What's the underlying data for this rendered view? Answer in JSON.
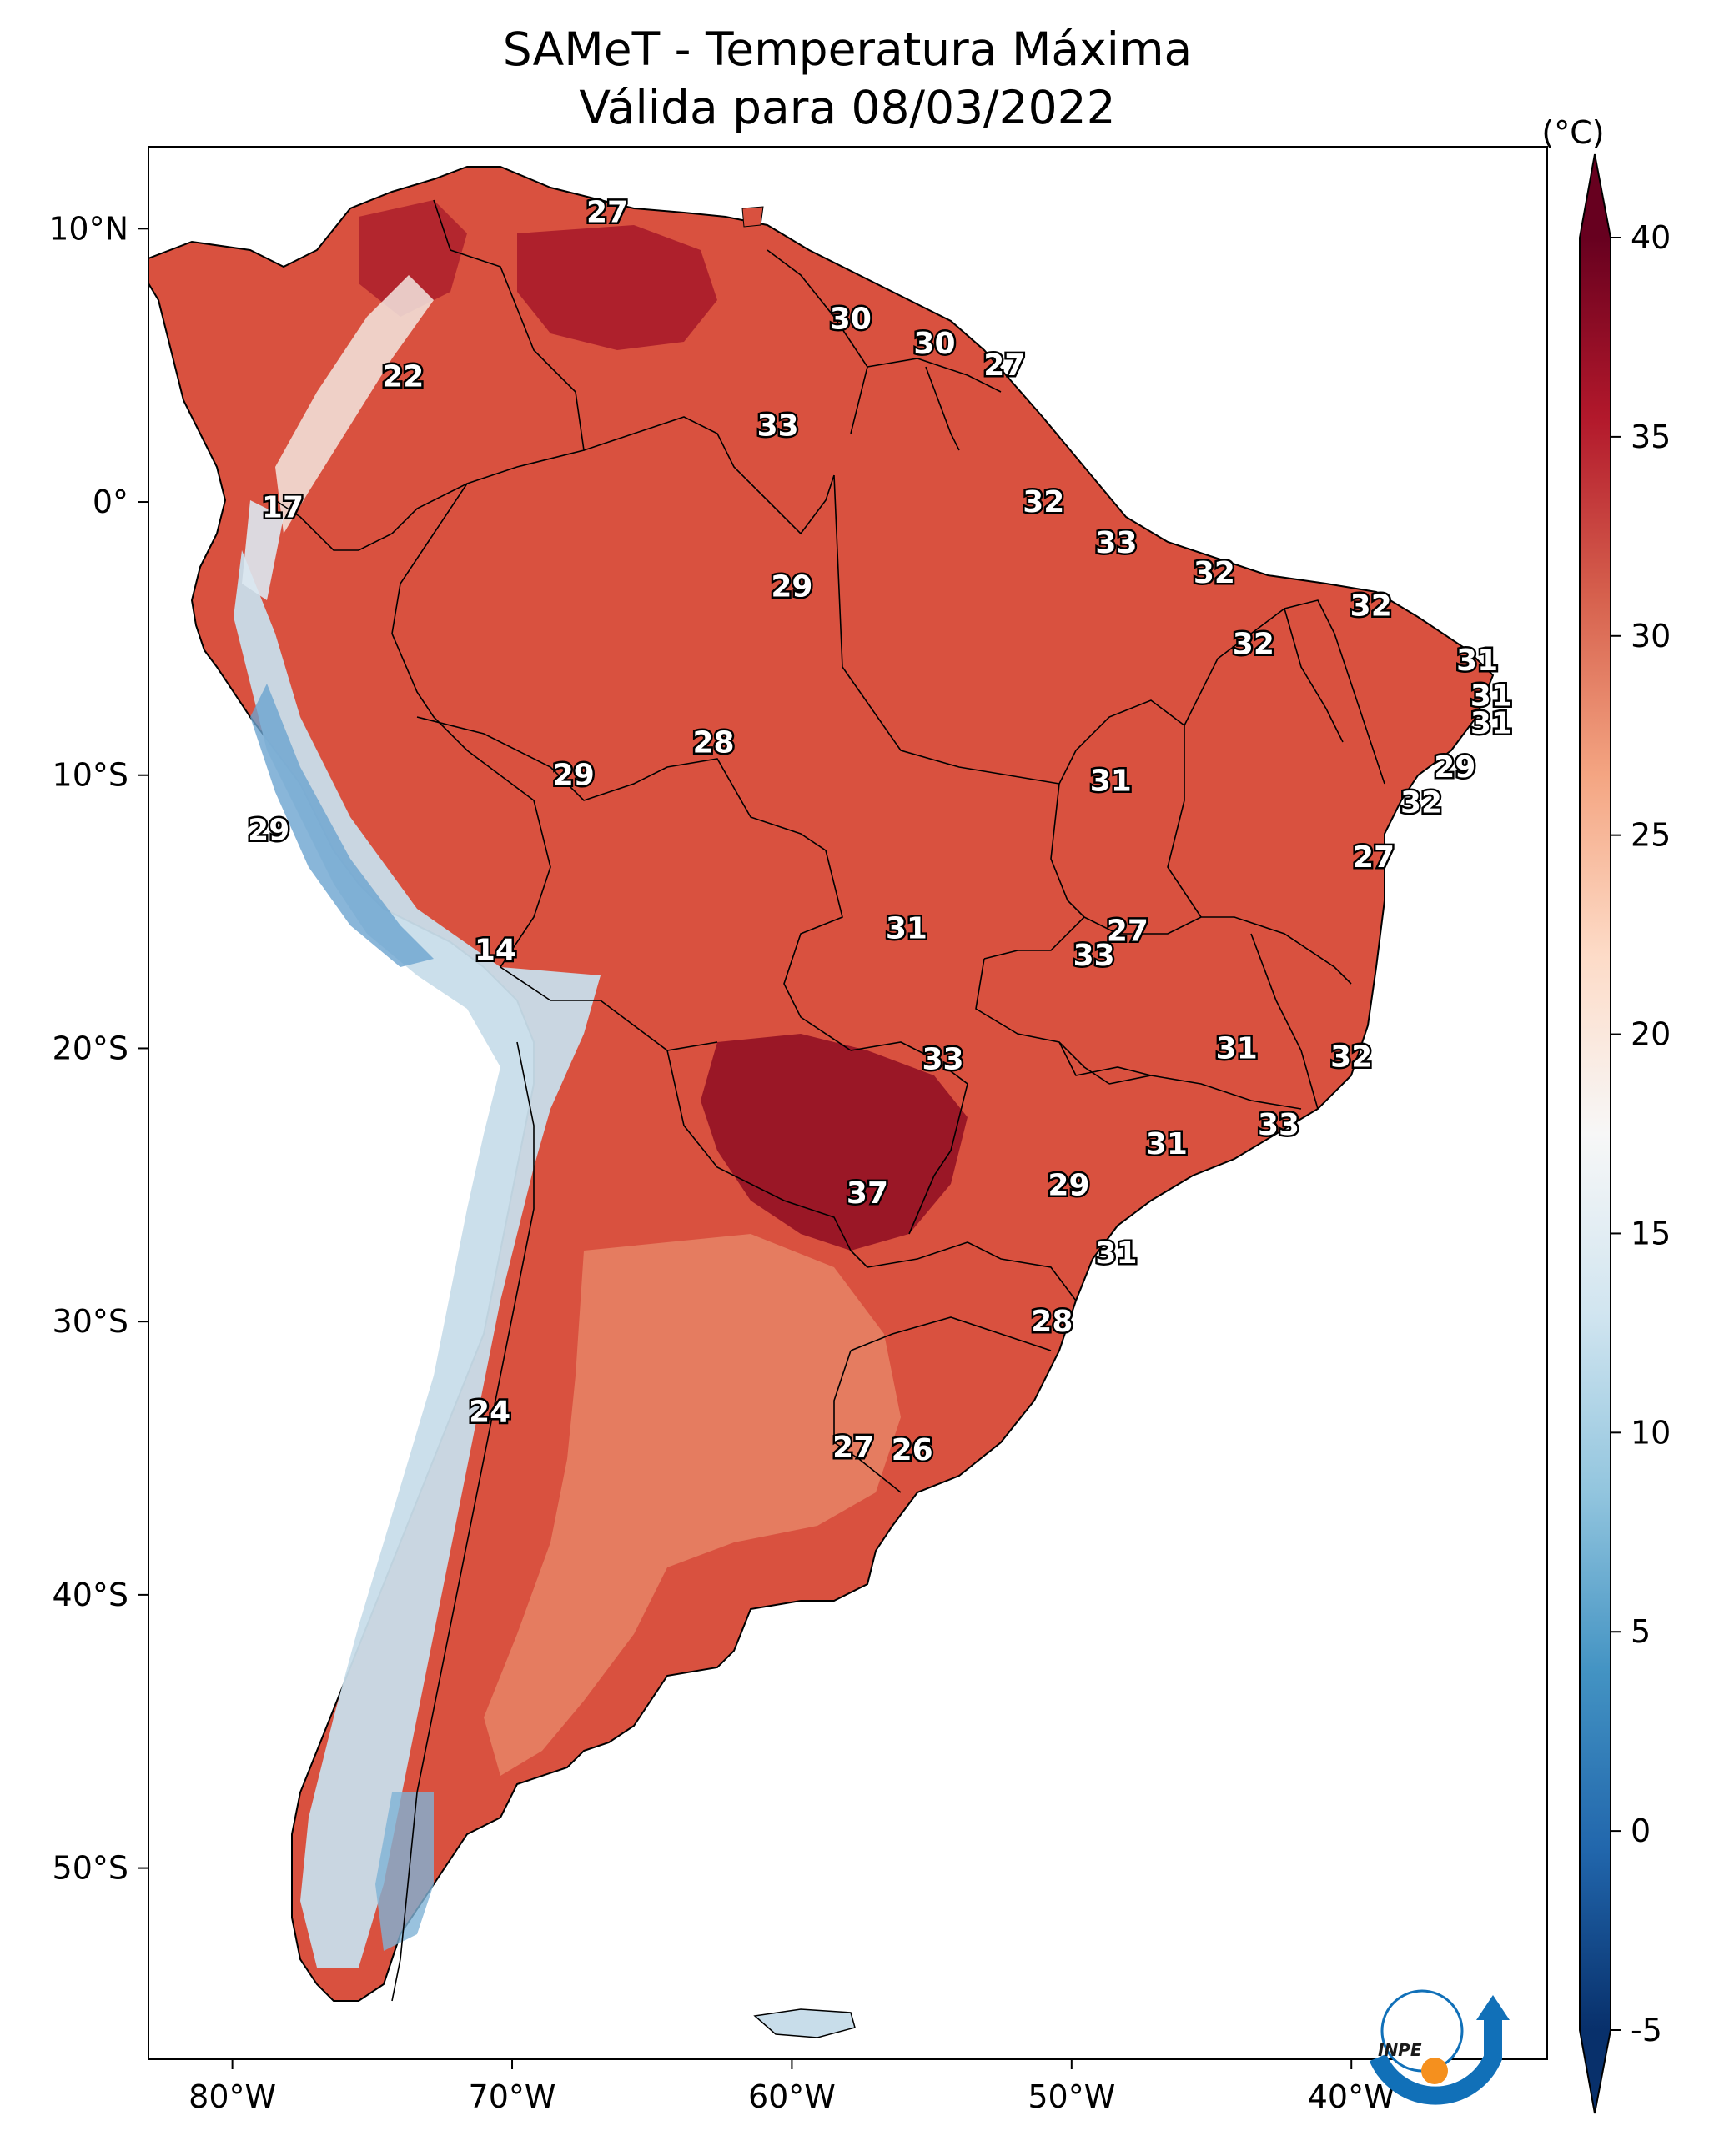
{
  "title": {
    "line1": "SAMeT - Temperatura Máxima",
    "line2": "Válida para 08/03/2022"
  },
  "map": {
    "lon_range": [
      -83,
      -33
    ],
    "lat_range": [
      -57,
      13
    ],
    "lon_ticks": [
      "80°W",
      "70°W",
      "60°W",
      "50°W",
      "40°W"
    ],
    "lat_ticks": [
      "10°N",
      "0°",
      "10°S",
      "20°S",
      "30°S",
      "40°S",
      "50°S"
    ],
    "station_labels": [
      {
        "lon": -66.6,
        "lat": 10.6,
        "value": "27"
      },
      {
        "lon": -57.9,
        "lat": 6.7,
        "value": "30"
      },
      {
        "lon": -54.9,
        "lat": 5.8,
        "value": "30"
      },
      {
        "lon": -52.4,
        "lat": 5.0,
        "value": "27"
      },
      {
        "lon": -73.9,
        "lat": 4.6,
        "value": "22"
      },
      {
        "lon": -60.5,
        "lat": 2.8,
        "value": "33"
      },
      {
        "lon": -78.2,
        "lat": -0.2,
        "value": "17"
      },
      {
        "lon": -51.0,
        "lat": 0.0,
        "value": "32"
      },
      {
        "lon": -48.4,
        "lat": -1.5,
        "value": "33"
      },
      {
        "lon": -44.9,
        "lat": -2.6,
        "value": "32"
      },
      {
        "lon": -60.0,
        "lat": -3.1,
        "value": "29"
      },
      {
        "lon": -39.3,
        "lat": -3.8,
        "value": "32"
      },
      {
        "lon": -43.5,
        "lat": -5.2,
        "value": "32"
      },
      {
        "lon": -35.5,
        "lat": -5.8,
        "value": "31"
      },
      {
        "lon": -35.0,
        "lat": -7.1,
        "value": "31"
      },
      {
        "lon": -35.0,
        "lat": -8.1,
        "value": "31"
      },
      {
        "lon": -36.3,
        "lat": -9.7,
        "value": "29"
      },
      {
        "lon": -62.8,
        "lat": -8.8,
        "value": "28"
      },
      {
        "lon": -67.8,
        "lat": -10.0,
        "value": "29"
      },
      {
        "lon": -48.6,
        "lat": -10.2,
        "value": "31"
      },
      {
        "lon": -37.5,
        "lat": -11.0,
        "value": "32"
      },
      {
        "lon": -78.7,
        "lat": -12.0,
        "value": "29"
      },
      {
        "lon": -39.2,
        "lat": -13.0,
        "value": "27"
      },
      {
        "lon": -55.9,
        "lat": -15.6,
        "value": "31"
      },
      {
        "lon": -48.0,
        "lat": -15.7,
        "value": "27"
      },
      {
        "lon": -49.2,
        "lat": -16.6,
        "value": "33"
      },
      {
        "lon": -70.6,
        "lat": -16.4,
        "value": "14"
      },
      {
        "lon": -44.1,
        "lat": -20.0,
        "value": "31"
      },
      {
        "lon": -40.0,
        "lat": -20.3,
        "value": "32"
      },
      {
        "lon": -54.6,
        "lat": -20.4,
        "value": "33"
      },
      {
        "lon": -42.6,
        "lat": -22.8,
        "value": "33"
      },
      {
        "lon": -46.6,
        "lat": -23.5,
        "value": "31"
      },
      {
        "lon": -50.1,
        "lat": -25.0,
        "value": "29"
      },
      {
        "lon": -57.3,
        "lat": -25.3,
        "value": "37"
      },
      {
        "lon": -48.4,
        "lat": -27.5,
        "value": "31"
      },
      {
        "lon": -50.7,
        "lat": -30.0,
        "value": "28"
      },
      {
        "lon": -70.8,
        "lat": -33.3,
        "value": "24"
      },
      {
        "lon": -57.8,
        "lat": -34.6,
        "value": "27"
      },
      {
        "lon": -55.7,
        "lat": -34.7,
        "value": "26"
      }
    ]
  },
  "colorbar": {
    "unit_label": "(°C)",
    "min": -5,
    "max": 40,
    "tick_values": [
      -5,
      0,
      5,
      10,
      15,
      20,
      25,
      30,
      35,
      40
    ],
    "tick_labels": [
      "-5",
      "0",
      "5",
      "10",
      "15",
      "20",
      "25",
      "30",
      "35",
      "40"
    ],
    "colors": [
      "#08306b",
      "#2166ac",
      "#4393c3",
      "#92c5de",
      "#d1e5f0",
      "#f7f7f7",
      "#fddbc7",
      "#f4a582",
      "#d6604d",
      "#b2182b",
      "#67001f"
    ]
  },
  "logo": {
    "text": "INPE",
    "colors": [
      "#1170b8",
      "#f5901e"
    ]
  }
}
